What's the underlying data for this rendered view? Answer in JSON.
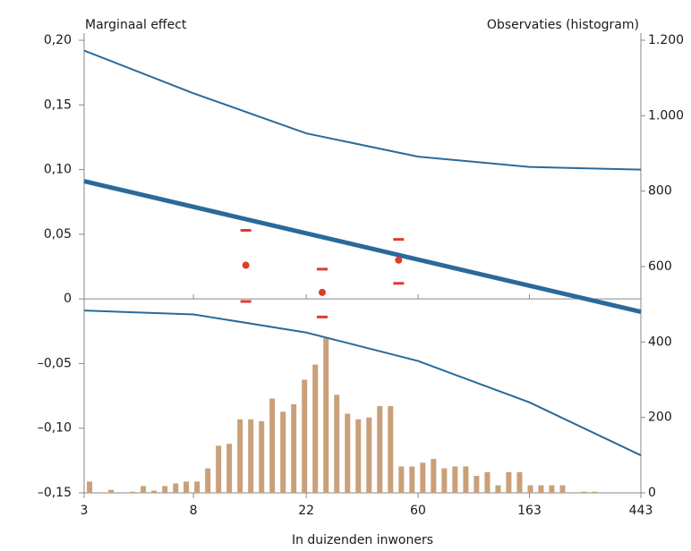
{
  "chart_data": {
    "type": "combo",
    "y_title": "Marginaal effect",
    "y2_title": "Observaties (histogram)",
    "x_title": "In duizenden inwoners",
    "xscale": "log",
    "xlim": [
      3,
      443
    ],
    "xticks": [
      3,
      8,
      22,
      60,
      163,
      443
    ],
    "ylim": [
      -0.15,
      0.2
    ],
    "yticks": [
      {
        "value": -0.15,
        "label": "–0,15"
      },
      {
        "value": -0.1,
        "label": "–0,10"
      },
      {
        "value": -0.05,
        "label": "–0,05"
      },
      0,
      {
        "value": 0.05,
        "label": "0,05"
      },
      {
        "value": 0.1,
        "label": "0,10"
      },
      {
        "value": 0.15,
        "label": "0,15"
      },
      {
        "value": 0.2,
        "label": "0,20"
      }
    ],
    "y2lim": [
      0,
      1200
    ],
    "y2ticks": [
      0,
      200,
      400,
      600,
      800,
      {
        "value": 1000,
        "label": "1.000"
      },
      {
        "value": 1200,
        "label": "1.200"
      }
    ],
    "series": [
      {
        "type": "bar",
        "axis": "y2",
        "color": "#c9a07a",
        "x": [
          3.15,
          3.82,
          4.63,
          5.1,
          5.62,
          6.19,
          6.82,
          7.5,
          8.26,
          9.1,
          10.02,
          11.03,
          12.15,
          13.38,
          14.74,
          16.22,
          17.87,
          19.67,
          21.67,
          23.86,
          26.28,
          28.94,
          31.87,
          35.1,
          38.65,
          42.57,
          46.88,
          51.63,
          56.85,
          62.61,
          68.95,
          75.93,
          83.6,
          92.1,
          101.4,
          111.7,
          123.0,
          135.4,
          149.2,
          164.3,
          180.9,
          199.2,
          219.4,
          266.1,
          293.0
        ],
        "values": [
          30,
          8,
          3,
          18,
          6,
          18,
          25,
          30,
          30,
          65,
          125,
          130,
          195,
          195,
          190,
          250,
          215,
          235,
          300,
          340,
          410,
          260,
          210,
          195,
          200,
          230,
          230,
          70,
          70,
          80,
          90,
          65,
          70,
          70,
          45,
          55,
          20,
          55,
          55,
          20,
          20,
          20,
          20,
          3,
          3
        ]
      },
      {
        "type": "line",
        "color": "#2a6a9a",
        "line_width": 2,
        "x": [
          3,
          8,
          22,
          60,
          163,
          443
        ],
        "values": [
          0.192,
          0.159,
          0.128,
          0.11,
          0.102,
          0.1
        ]
      },
      {
        "type": "line",
        "color": "#2a6a9a",
        "line_width": 2,
        "x": [
          3,
          8,
          22,
          60,
          163,
          443
        ],
        "values": [
          -0.009,
          -0.012,
          -0.026,
          -0.048,
          -0.08,
          -0.121
        ]
      },
      {
        "type": "line",
        "color": "#2a6a9a",
        "line_width": 5,
        "x": [
          3,
          443
        ],
        "values": [
          0.091,
          -0.01
        ]
      },
      {
        "type": "errorpoint",
        "color": "#e03a2e",
        "x": [
          12.8,
          25.4,
          50.4
        ],
        "values": [
          0.026,
          0.005,
          0.03
        ],
        "upper": [
          0.053,
          0.023,
          0.046
        ],
        "lower": [
          -0.002,
          -0.014,
          0.012
        ]
      }
    ]
  }
}
